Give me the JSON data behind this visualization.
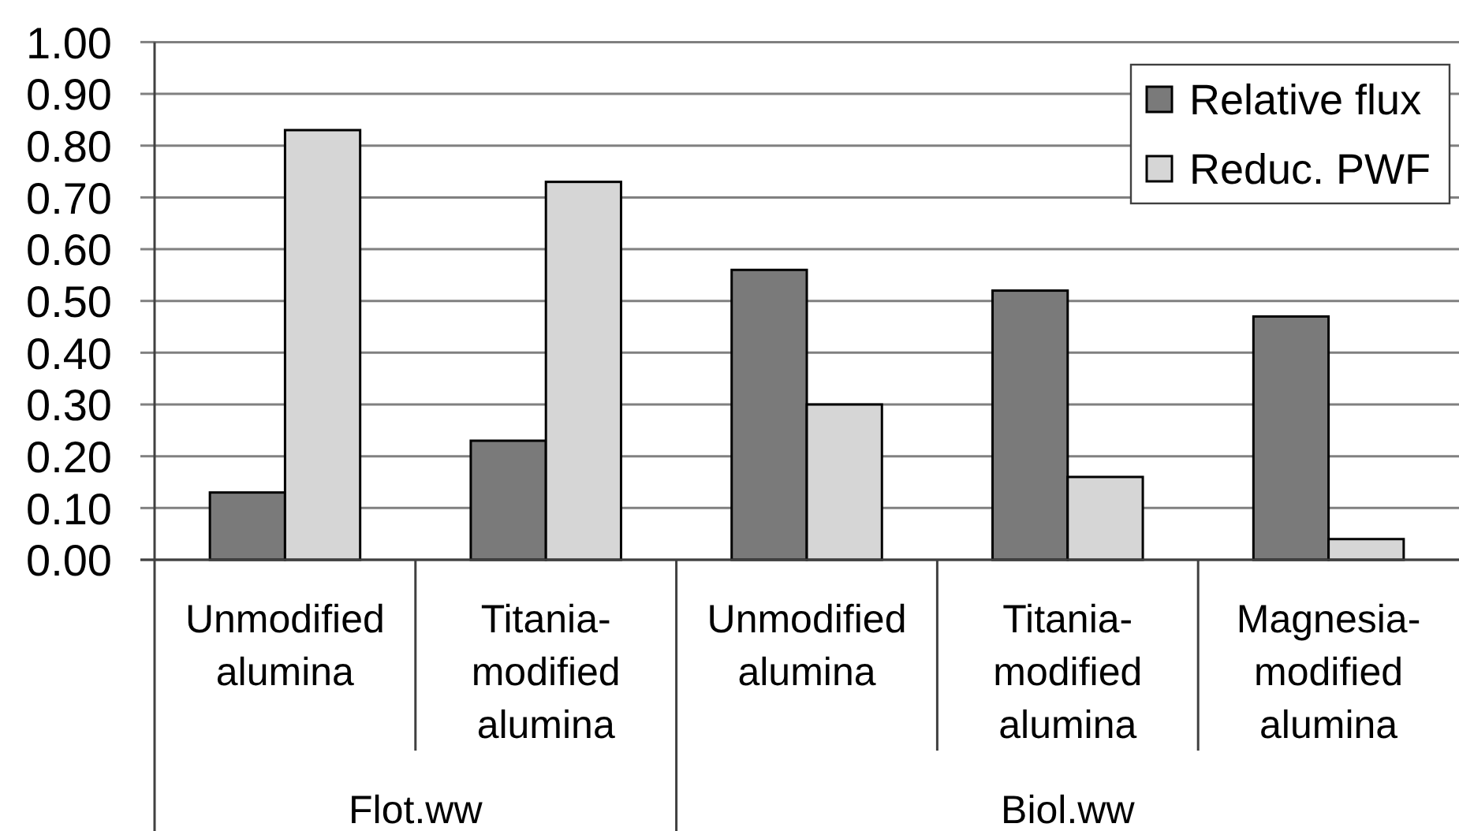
{
  "chart_data": {
    "type": "bar",
    "categories": [
      "Unmodified alumina",
      "Titania-modified alumina",
      "Unmodified alumina",
      "Titania-modified alumina",
      "Magnesia-modified alumina"
    ],
    "series": [
      {
        "name": "Relative flux",
        "color": "#7a7a7a",
        "values": [
          0.13,
          0.23,
          0.56,
          0.52,
          0.47
        ]
      },
      {
        "name": "Reduc. PWF",
        "color": "#d6d6d6",
        "values": [
          0.83,
          0.73,
          0.3,
          0.16,
          0.04
        ]
      }
    ],
    "ylim": [
      0,
      1
    ],
    "yticks": [
      {
        "value": 0,
        "label": "0.00"
      },
      {
        "value": 0.1,
        "label": "0.10"
      },
      {
        "value": 0.2,
        "label": "0.20"
      },
      {
        "value": 0.3,
        "label": "0.30"
      },
      {
        "value": 0.4,
        "label": "0.40"
      },
      {
        "value": 0.5,
        "label": "0.50"
      },
      {
        "value": 0.6,
        "label": "0.60"
      },
      {
        "value": 0.7,
        "label": "0.70"
      },
      {
        "value": 0.8,
        "label": "0.80"
      },
      {
        "value": 0.9,
        "label": "0.90"
      },
      {
        "value": 1,
        "label": "1.00"
      }
    ],
    "grid": "y",
    "legend": "top right",
    "annotations": [
      "Flot.ww",
      "Biol.ww"
    ]
  }
}
